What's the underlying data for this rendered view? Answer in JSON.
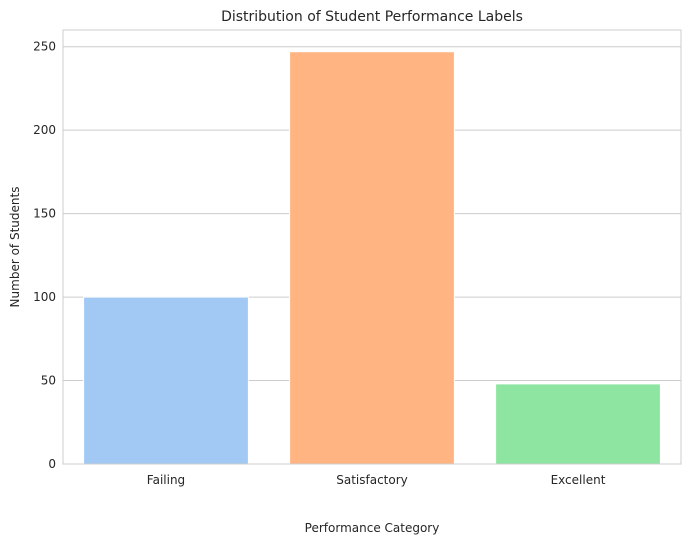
{
  "chart_data": {
    "type": "bar",
    "title": "Distribution of Student Performance Labels",
    "xlabel": "Performance Category",
    "ylabel": "Number of Students",
    "categories": [
      "Failing",
      "Satisfactory",
      "Excellent"
    ],
    "values": [
      100,
      247,
      48
    ],
    "colors": [
      "#a1c9f4",
      "#ffb482",
      "#8de5a1"
    ],
    "ylim": [
      0,
      260
    ],
    "yticks": [
      0,
      50,
      100,
      150,
      200,
      250
    ],
    "grid": true,
    "grid_axis": "y",
    "grid_color": "#cccccc",
    "legend": "none"
  }
}
